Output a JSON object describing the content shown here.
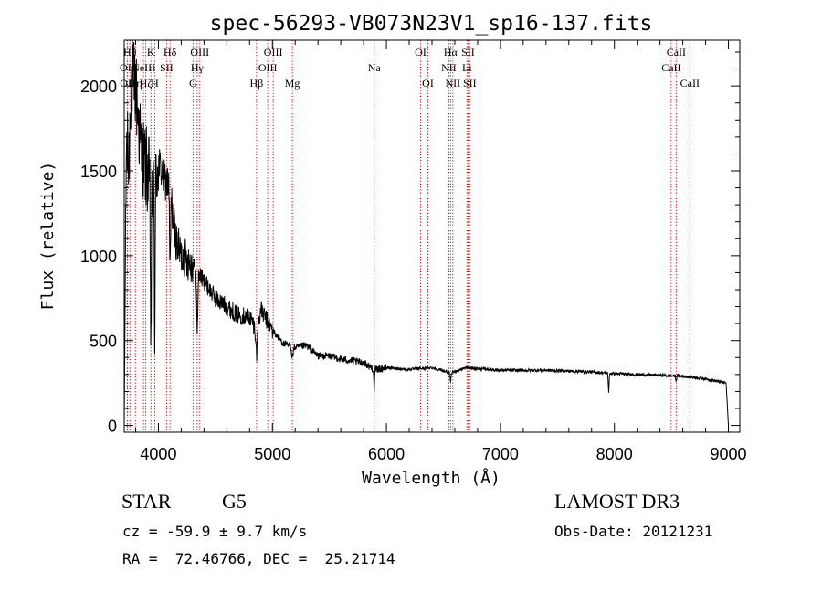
{
  "chart_data": {
    "type": "line",
    "title": "spec-56293-VB073N23V1_sp16-137.fits",
    "xlabel": "Wavelength (Å)",
    "ylabel": "Flux (relative)",
    "xlim": [
      3700,
      9100
    ],
    "ylim": [
      -40,
      2270
    ],
    "xticks": [
      4000,
      5000,
      6000,
      7000,
      8000,
      9000
    ],
    "xtick_labels": [
      "4000",
      "5000",
      "6000",
      "7000",
      "8000",
      "9000"
    ],
    "yticks": [
      0,
      500,
      1000,
      1500,
      2000
    ],
    "ytick_labels": [
      "0",
      "500",
      "1000",
      "1500",
      "2000"
    ],
    "grid": false,
    "line_color": "#000000",
    "marker_line_color": "#cc0000",
    "spectrum_anchors": {
      "x": [
        3700,
        3720,
        3740,
        3760,
        3800,
        3850,
        3900,
        3950,
        4000,
        4050,
        4100,
        4150,
        4200,
        4250,
        4300,
        4350,
        4400,
        4500,
        4600,
        4700,
        4800,
        4861,
        4900,
        5000,
        5100,
        5200,
        5300,
        5400,
        5500,
        5600,
        5700,
        5800,
        5893,
        6000,
        6200,
        6400,
        6563,
        6700,
        6800,
        7000,
        7200,
        7400,
        7600,
        7800,
        8000,
        8200,
        8400,
        8600,
        8800,
        8900,
        8980,
        9000
      ],
      "y": [
        0,
        1700,
        1500,
        2050,
        2000,
        1600,
        1500,
        1350,
        1550,
        1450,
        1400,
        1100,
        1000,
        980,
        950,
        900,
        850,
        750,
        700,
        650,
        640,
        560,
        680,
        560,
        480,
        460,
        470,
        410,
        410,
        390,
        380,
        370,
        330,
        340,
        330,
        340,
        310,
        340,
        335,
        325,
        325,
        325,
        320,
        315,
        305,
        300,
        295,
        290,
        275,
        260,
        250,
        0
      ]
    },
    "noise_scale": [
      {
        "x_max": 4000,
        "amplitude": 260
      },
      {
        "x_max": 4300,
        "amplitude": 120
      },
      {
        "x_max": 5000,
        "amplitude": 55
      },
      {
        "x_max": 6000,
        "amplitude": 22
      },
      {
        "x_max": 9100,
        "amplitude": 9
      }
    ],
    "absorption_dips": [
      {
        "x": 3934,
        "depth": 900,
        "width": 6
      },
      {
        "x": 3968,
        "depth": 800,
        "width": 6
      },
      {
        "x": 4102,
        "depth": 500,
        "width": 6
      },
      {
        "x": 4340,
        "depth": 350,
        "width": 8
      },
      {
        "x": 4861,
        "depth": 150,
        "width": 8
      },
      {
        "x": 5175,
        "depth": 60,
        "width": 10
      },
      {
        "x": 5893,
        "depth": 120,
        "width": 5
      },
      {
        "x": 6563,
        "depth": 60,
        "width": 6
      },
      {
        "x": 7950,
        "depth": 110,
        "width": 5
      },
      {
        "x": 8542,
        "depth": 30,
        "width": 5
      }
    ],
    "line_markers": [
      {
        "x": 3727,
        "label": "OII",
        "row": 1
      },
      {
        "x": 3729,
        "label": "OII",
        "row": 2
      },
      {
        "x": 3750,
        "label": "Hθ",
        "row": 0
      },
      {
        "x": 3798,
        "label": "Hη",
        "row": 2
      },
      {
        "x": 3869,
        "label": "NeIII",
        "row": 1
      },
      {
        "x": 3889,
        "label": "Hζ",
        "row": 2
      },
      {
        "x": 3934,
        "label": "K",
        "row": 0
      },
      {
        "x": 3968,
        "label": "H",
        "row": 2
      },
      {
        "x": 4072,
        "label": "SII",
        "row": 1
      },
      {
        "x": 4102,
        "label": "Hδ",
        "row": 0
      },
      {
        "x": 4304,
        "label": "G",
        "row": 2
      },
      {
        "x": 4340,
        "label": "Hγ",
        "row": 1
      },
      {
        "x": 4363,
        "label": "OIII",
        "row": 0
      },
      {
        "x": 4861,
        "label": "Hβ",
        "row": 2
      },
      {
        "x": 4959,
        "label": "OIII",
        "row": 1
      },
      {
        "x": 5007,
        "label": "OIII",
        "row": 0
      },
      {
        "x": 5175,
        "label": "Mg",
        "row": 2
      },
      {
        "x": 5893,
        "label": "Na",
        "row": 1
      },
      {
        "x": 6300,
        "label": "OI",
        "row": 0
      },
      {
        "x": 6364,
        "label": "OI",
        "row": 2
      },
      {
        "x": 6548,
        "label": "NII",
        "row": 1
      },
      {
        "x": 6563,
        "label": "Hα",
        "row": 0
      },
      {
        "x": 6583,
        "label": "NII",
        "row": 2
      },
      {
        "x": 6707,
        "label": "Li",
        "row": 1
      },
      {
        "x": 6716,
        "label": "SII",
        "row": 0
      },
      {
        "x": 6731,
        "label": "SII",
        "row": 2
      },
      {
        "x": 8498,
        "label": "CaII",
        "row": 1
      },
      {
        "x": 8542,
        "label": "CaII",
        "row": 0
      },
      {
        "x": 8662,
        "label": "CaII",
        "row": 2
      }
    ]
  },
  "info": {
    "object_class": "STAR",
    "subclass": "G5",
    "survey": "LAMOST DR3",
    "velocity": "cz = -59.9 ± 9.7 km/s",
    "obs_date": "Obs-Date: 20121231",
    "coordinates": "RA =  72.46766, DEC =  25.21714"
  }
}
